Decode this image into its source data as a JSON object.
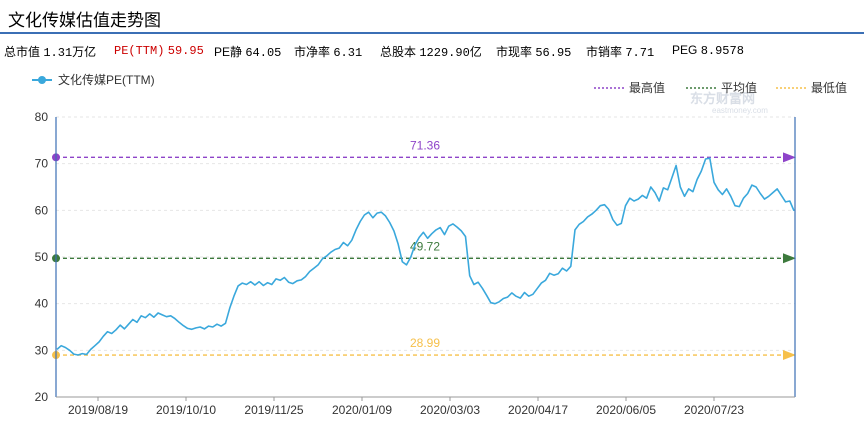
{
  "page": {
    "title": "文化传媒估值走势图"
  },
  "stats": [
    {
      "label": "总市值",
      "value": "1.31万亿",
      "highlight": false
    },
    {
      "label": "PE(TTM)",
      "value": "59.95",
      "highlight": true
    },
    {
      "label": "PE静",
      "value": "64.05",
      "highlight": false
    },
    {
      "label": "市净率",
      "value": "6.31",
      "highlight": false
    },
    {
      "label": "总股本",
      "value": "1229.90亿",
      "highlight": false
    },
    {
      "label": "市现率",
      "value": "56.95",
      "highlight": false
    },
    {
      "label": "市销率",
      "value": "7.71",
      "highlight": false
    },
    {
      "label": "PEG",
      "value": "8.9578",
      "highlight": false
    }
  ],
  "watermark": {
    "brand": "东方财富网",
    "domain": "eastmoney.com"
  },
  "chart_data": {
    "type": "line",
    "x_tick_labels": [
      "2019/08/19",
      "2019/10/10",
      "2019/11/25",
      "2020/01/09",
      "2020/03/03",
      "2020/04/17",
      "2020/06/05",
      "2020/07/23"
    ],
    "ylim": [
      20,
      80
    ],
    "y_ticks": [
      20,
      30,
      40,
      50,
      60,
      70,
      80
    ],
    "grid": true,
    "legend_position": "top",
    "series": [
      {
        "name": "文化传媒PE(TTM)",
        "color": "#3aa8dc",
        "values": [
          30.2,
          31.0,
          30.6,
          30.0,
          29.2,
          29.0,
          29.3,
          29.1,
          30.2,
          31.0,
          31.8,
          33.0,
          34.0,
          33.6,
          34.4,
          35.4,
          34.6,
          35.6,
          36.6,
          36.0,
          37.4,
          37.0,
          37.8,
          37.1,
          38.0,
          37.6,
          37.2,
          37.4,
          36.8,
          36.0,
          35.3,
          34.7,
          34.5,
          34.8,
          35.0,
          34.6,
          35.2,
          35.0,
          35.6,
          35.2,
          35.8,
          39.0,
          41.6,
          43.8,
          44.4,
          44.1,
          44.7,
          44.0,
          44.7,
          43.9,
          44.5,
          44.1,
          45.3,
          45.0,
          45.6,
          44.6,
          44.3,
          44.9,
          45.1,
          45.8,
          46.9,
          47.6,
          48.3,
          49.6,
          50.2,
          51.0,
          51.6,
          51.9,
          53.1,
          52.4,
          53.6,
          55.8,
          57.6,
          59.0,
          59.6,
          58.4,
          59.4,
          59.6,
          58.8,
          57.4,
          55.6,
          52.8,
          49.0,
          48.3,
          50.0,
          52.6,
          54.2,
          55.3,
          54.0,
          55.0,
          55.8,
          56.3,
          54.8,
          56.6,
          57.1,
          56.4,
          55.6,
          54.4,
          46.0,
          44.1,
          44.6,
          43.3,
          41.8,
          40.2,
          40.0,
          40.4,
          41.1,
          41.4,
          42.3,
          41.6,
          41.2,
          42.4,
          41.6,
          42.0,
          43.2,
          44.4,
          45.0,
          46.5,
          46.1,
          46.4,
          47.6,
          47.0,
          48.0,
          55.8,
          57.0,
          57.6,
          58.6,
          59.2,
          60.0,
          61.0,
          61.2,
          60.2,
          58.0,
          56.8,
          57.2,
          61.0,
          62.6,
          62.0,
          62.4,
          63.2,
          62.6,
          65.0,
          63.8,
          62.0,
          64.8,
          64.4,
          67.0,
          69.6,
          65.0,
          63.0,
          64.6,
          64.0,
          66.6,
          68.4,
          71.0,
          71.2,
          66.0,
          64.4,
          63.4,
          64.6,
          63.0,
          61.0,
          60.8,
          62.6,
          63.6,
          65.4,
          65.0,
          63.6,
          62.4,
          63.0,
          63.8,
          64.6,
          63.2,
          61.8,
          62.0,
          59.9
        ]
      }
    ],
    "reference_lines": [
      {
        "name": "最高值",
        "value": 71.36,
        "label": "71.36",
        "color": "#8e44c9"
      },
      {
        "name": "平均值",
        "value": 49.72,
        "label": "49.72",
        "color": "#3d7a3d"
      },
      {
        "name": "最低值",
        "value": 28.99,
        "label": "28.99",
        "color": "#f6c04a"
      }
    ]
  }
}
